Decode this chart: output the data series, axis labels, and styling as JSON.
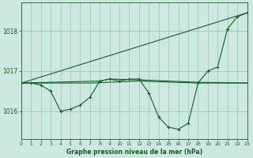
{
  "bg_color": "#cce8e0",
  "grid_color": "#99ccbb",
  "line_color": "#1a5c2a",
  "title": "Graphe pression niveau de la mer (hPa)",
  "xlim": [
    0,
    23
  ],
  "ylim": [
    1015.3,
    1018.7
  ],
  "yticks": [
    1016,
    1017,
    1018
  ],
  "xticks": [
    0,
    1,
    2,
    3,
    4,
    5,
    6,
    7,
    8,
    9,
    10,
    11,
    12,
    13,
    14,
    15,
    16,
    17,
    18,
    19,
    20,
    21,
    22,
    23
  ],
  "series_main": {
    "x": [
      0,
      1,
      2,
      3,
      4,
      5,
      6,
      7,
      8,
      9,
      10,
      11,
      12,
      13,
      14,
      15,
      16,
      17,
      18,
      19,
      20,
      21,
      22,
      23
    ],
    "y": [
      1016.7,
      1016.7,
      1016.65,
      1016.5,
      1016.0,
      1016.05,
      1016.15,
      1016.35,
      1016.75,
      1016.8,
      1016.75,
      1016.8,
      1016.8,
      1016.45,
      1015.85,
      1015.6,
      1015.55,
      1015.7,
      1016.7,
      1017.0,
      1017.1,
      1018.05,
      1018.35,
      1018.45
    ]
  },
  "series_trend": {
    "x": [
      0,
      23
    ],
    "y": [
      1016.7,
      1018.45
    ]
  },
  "series_flat1": {
    "x": [
      0,
      7,
      12,
      18,
      23
    ],
    "y": [
      1016.7,
      1016.7,
      1016.75,
      1016.7,
      1016.7
    ]
  },
  "series_flat2": {
    "x": [
      0,
      8,
      9,
      12,
      18,
      23
    ],
    "y": [
      1016.7,
      1016.75,
      1016.8,
      1016.78,
      1016.72,
      1016.7
    ]
  }
}
